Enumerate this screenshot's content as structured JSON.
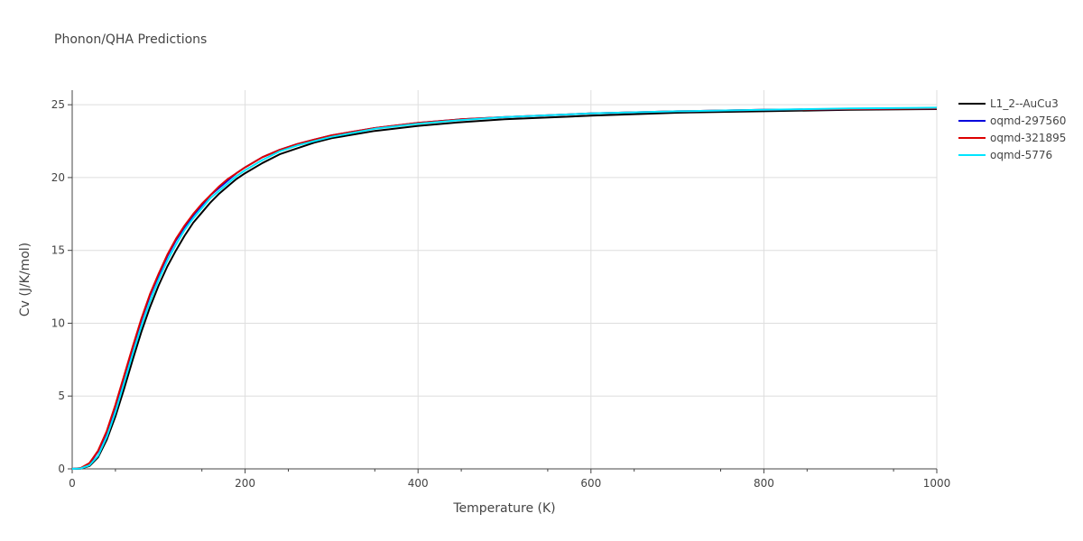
{
  "chart_data": {
    "type": "line",
    "title": "Phonon/QHA Predictions",
    "xlabel": "Temperature (K)",
    "ylabel": "Cv (J/K/mol)",
    "xlim": [
      0,
      1000
    ],
    "ylim": [
      0,
      26
    ],
    "xticks": [
      0,
      200,
      400,
      600,
      800,
      1000
    ],
    "yticks": [
      0,
      5,
      10,
      15,
      20,
      25
    ],
    "grid": true,
    "legend": "top-right",
    "x": [
      0,
      10,
      20,
      30,
      40,
      50,
      60,
      70,
      80,
      90,
      100,
      110,
      120,
      130,
      140,
      150,
      160,
      170,
      180,
      190,
      200,
      220,
      240,
      260,
      280,
      300,
      350,
      400,
      450,
      500,
      600,
      700,
      800,
      900,
      1000
    ],
    "series": [
      {
        "name": "L1_2--AuCu3",
        "color": "#000000",
        "values": [
          0,
          0.02,
          0.2,
          0.8,
          2.0,
          3.6,
          5.5,
          7.5,
          9.4,
          11.1,
          12.6,
          13.9,
          15.0,
          16.0,
          16.9,
          17.6,
          18.3,
          18.9,
          19.4,
          19.9,
          20.3,
          21.0,
          21.6,
          22.0,
          22.4,
          22.7,
          23.2,
          23.55,
          23.8,
          24.0,
          24.25,
          24.45,
          24.55,
          24.65,
          24.7
        ]
      },
      {
        "name": "oqmd-297560",
        "color": "#0000dd",
        "values": [
          0,
          0.05,
          0.35,
          1.2,
          2.5,
          4.3,
          6.3,
          8.3,
          10.2,
          11.9,
          13.3,
          14.6,
          15.7,
          16.6,
          17.4,
          18.1,
          18.8,
          19.3,
          19.8,
          20.3,
          20.7,
          21.4,
          21.9,
          22.3,
          22.6,
          22.9,
          23.4,
          23.75,
          24.0,
          24.15,
          24.4,
          24.55,
          24.65,
          24.7,
          24.75
        ]
      },
      {
        "name": "oqmd-321895",
        "color": "#dd0000",
        "values": [
          0,
          0.06,
          0.4,
          1.25,
          2.6,
          4.4,
          6.4,
          8.4,
          10.3,
          12.0,
          13.4,
          14.7,
          15.8,
          16.7,
          17.5,
          18.2,
          18.8,
          19.4,
          19.9,
          20.3,
          20.7,
          21.4,
          21.9,
          22.3,
          22.6,
          22.9,
          23.4,
          23.75,
          24.0,
          24.15,
          24.4,
          24.55,
          24.65,
          24.7,
          24.75
        ]
      },
      {
        "name": "oqmd-5776",
        "color": "#00e5ff",
        "values": [
          0,
          0.03,
          0.25,
          0.9,
          2.2,
          3.9,
          5.9,
          7.9,
          9.8,
          11.5,
          13.0,
          14.3,
          15.4,
          16.4,
          17.2,
          17.9,
          18.6,
          19.1,
          19.6,
          20.1,
          20.5,
          21.2,
          21.8,
          22.2,
          22.5,
          22.8,
          23.35,
          23.7,
          23.95,
          24.15,
          24.4,
          24.55,
          24.65,
          24.75,
          24.8
        ]
      }
    ]
  }
}
